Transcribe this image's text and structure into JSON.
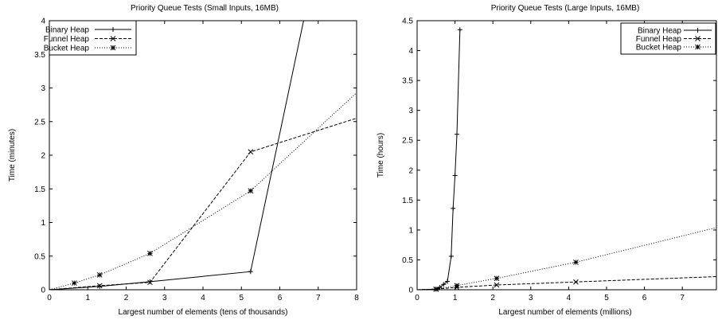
{
  "chart_data": [
    {
      "type": "line",
      "title": "Priority Queue Tests (Small Inputs, 16MB)",
      "xlabel": "Largest number of elements (tens of thousands)",
      "ylabel": "Time (minutes)",
      "xlim": [
        0,
        8
      ],
      "ylim": [
        0,
        4
      ],
      "xticks": [
        "0",
        "1",
        "2",
        "3",
        "4",
        "5",
        "6",
        "7",
        "8"
      ],
      "yticks": [
        "0",
        "0.5",
        "1",
        "1.5",
        "2",
        "2.5",
        "3",
        "3.5",
        "4"
      ],
      "grid": false,
      "legend_position": "top-left",
      "series": [
        {
          "name": "Binary Heap",
          "marker": "plus",
          "dash": "solid",
          "clip_end": true,
          "x": [
            0,
            1.31,
            2.62,
            5.24,
            6.62
          ],
          "y": [
            0,
            0.05,
            0.12,
            0.27,
            4.0
          ]
        },
        {
          "name": "Funnel Heap",
          "marker": "x",
          "dash": "dashed",
          "clip_end": true,
          "x": [
            0,
            1.31,
            2.62,
            5.24,
            8.0
          ],
          "y": [
            0,
            0.06,
            0.11,
            2.05,
            2.55
          ]
        },
        {
          "name": "Bucket Heap",
          "marker": "star",
          "dash": "dotted",
          "clip_end": true,
          "x": [
            0,
            0.65,
            1.31,
            2.62,
            5.24,
            8.0
          ],
          "y": [
            0,
            0.1,
            0.22,
            0.54,
            1.47,
            2.93
          ]
        }
      ]
    },
    {
      "type": "line",
      "title": "Priority Queue Tests (Large Inputs, 16MB)",
      "xlabel": "Largest number of elements (millions)",
      "ylabel": "Time (hours)",
      "xlim": [
        0,
        7.9
      ],
      "ylim": [
        0,
        4.5
      ],
      "xticks": [
        "0",
        "1",
        "2",
        "3",
        "4",
        "5",
        "6",
        "7"
      ],
      "yticks": [
        "0",
        "0.5",
        "1",
        "1.5",
        "2",
        "2.5",
        "3",
        "3.5",
        "4",
        "4.5"
      ],
      "grid": false,
      "legend_position": "top-right",
      "series": [
        {
          "name": "Binary Heap",
          "marker": "plus",
          "dash": "solid",
          "clip_end": false,
          "x": [
            0,
            0.5,
            0.6,
            0.7,
            0.8,
            0.9,
            0.95,
            1.0,
            1.05,
            1.13
          ],
          "y": [
            0,
            0.01,
            0.04,
            0.09,
            0.14,
            0.56,
            1.36,
            1.91,
            2.6,
            4.35
          ]
        },
        {
          "name": "Funnel Heap",
          "marker": "x",
          "dash": "dashed",
          "clip_end": true,
          "x": [
            0,
            0.5,
            1.05,
            2.1,
            4.19,
            7.9
          ],
          "y": [
            0,
            0.01,
            0.04,
            0.08,
            0.13,
            0.22
          ]
        },
        {
          "name": "Bucket Heap",
          "marker": "star",
          "dash": "dotted",
          "clip_end": true,
          "x": [
            0,
            0.5,
            1.05,
            2.1,
            4.19,
            7.9
          ],
          "y": [
            0,
            0.01,
            0.07,
            0.19,
            0.46,
            1.04
          ]
        }
      ]
    }
  ]
}
